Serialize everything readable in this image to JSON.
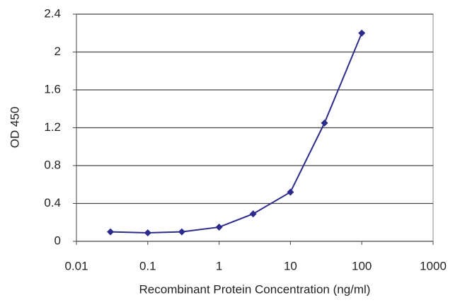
{
  "chart_data": {
    "type": "line",
    "x_label": "Recombinant Protein Concentration (ng/ml)",
    "y_label": "OD 450",
    "x": [
      0.03,
      0.1,
      0.3,
      1,
      3,
      10,
      30,
      100
    ],
    "series": [
      {
        "name": "OD 450",
        "color": "#2b2b8c",
        "values": [
          0.1,
          0.09,
          0.1,
          0.15,
          0.29,
          0.52,
          1.25,
          2.2
        ]
      }
    ],
    "xscale": "log",
    "xlim": [
      0.01,
      1000
    ],
    "xticks": [
      0.01,
      0.1,
      1,
      10,
      100,
      1000
    ],
    "ylim": [
      0,
      2.4
    ],
    "yticks": [
      0,
      0.4,
      0.8,
      1.2,
      1.6,
      2,
      2.4
    ],
    "grid": true
  }
}
